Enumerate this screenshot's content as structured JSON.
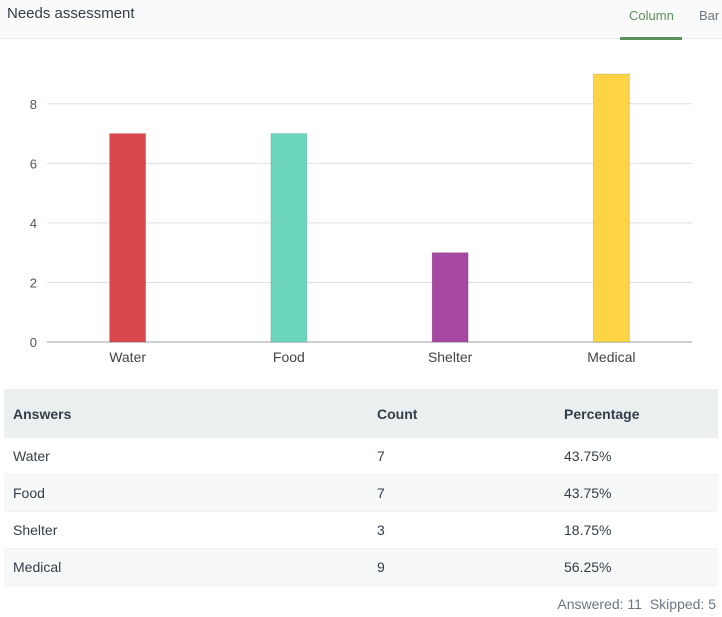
{
  "header": {
    "title": "Needs assessment",
    "tabs": [
      {
        "label": "Column",
        "active": true
      },
      {
        "label": "Bar",
        "active": false
      }
    ]
  },
  "chart_data": {
    "type": "bar",
    "categories": [
      "Water",
      "Food",
      "Shelter",
      "Medical"
    ],
    "values": [
      7,
      7,
      3,
      9
    ],
    "colors": [
      "#d9484c",
      "#6dd7bd",
      "#a647a1",
      "#fed345"
    ],
    "ylim": [
      0,
      9
    ],
    "yticks": [
      0,
      2,
      4,
      6,
      8
    ],
    "grid": true
  },
  "table": {
    "headers": [
      "Answers",
      "Count",
      "Percentage"
    ],
    "rows": [
      [
        "Water",
        "7",
        "43.75%"
      ],
      [
        "Food",
        "7",
        "43.75%"
      ],
      [
        "Shelter",
        "3",
        "18.75%"
      ],
      [
        "Medical",
        "9",
        "56.25%"
      ]
    ]
  },
  "footer": {
    "answered": "Answered: 11",
    "skipped": "Skipped: 5"
  }
}
